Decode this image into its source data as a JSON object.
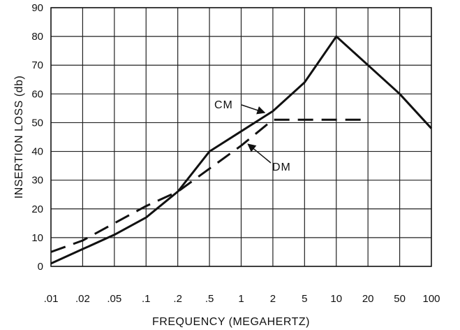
{
  "chart_data": {
    "type": "line",
    "xlabel": "FREQUENCY (MEGAHERTZ)",
    "ylabel": "INSERTION LOSS (db)",
    "x_scale": "log",
    "ylim": [
      0,
      90
    ],
    "grid": true,
    "x_ticks": [
      0.01,
      0.02,
      0.05,
      0.1,
      0.2,
      0.5,
      1,
      2,
      5,
      10,
      20,
      50,
      100
    ],
    "x_tick_labels": [
      ".01",
      ".02",
      ".05",
      ".1",
      ".2",
      ".5",
      "1",
      "2",
      "5",
      "10",
      "20",
      "50",
      "100"
    ],
    "y_ticks": [
      0,
      10,
      20,
      30,
      40,
      50,
      60,
      70,
      80,
      90
    ],
    "y_tick_labels": [
      "0",
      "10",
      "20",
      "30",
      "40",
      "50",
      "60",
      "70",
      "80",
      "90"
    ],
    "series": [
      {
        "name": "CM",
        "style": "solid",
        "x": [
          0.01,
          0.02,
          0.05,
          0.1,
          0.2,
          0.5,
          1,
          2,
          5,
          10,
          20,
          50,
          100
        ],
        "y": [
          1,
          6,
          11,
          17,
          26,
          40,
          47,
          54,
          64,
          80,
          70,
          60,
          48
        ]
      },
      {
        "name": "DM",
        "style": "dashed",
        "x": [
          0.01,
          0.02,
          0.05,
          0.1,
          0.2,
          0.5,
          1,
          2,
          5,
          10,
          20
        ],
        "y": [
          5,
          9,
          15,
          21,
          26,
          34,
          42,
          51,
          51,
          51,
          51
        ]
      }
    ],
    "annotations": [
      {
        "text": "CM",
        "series": "CM"
      },
      {
        "text": "DM",
        "series": "DM"
      }
    ]
  }
}
